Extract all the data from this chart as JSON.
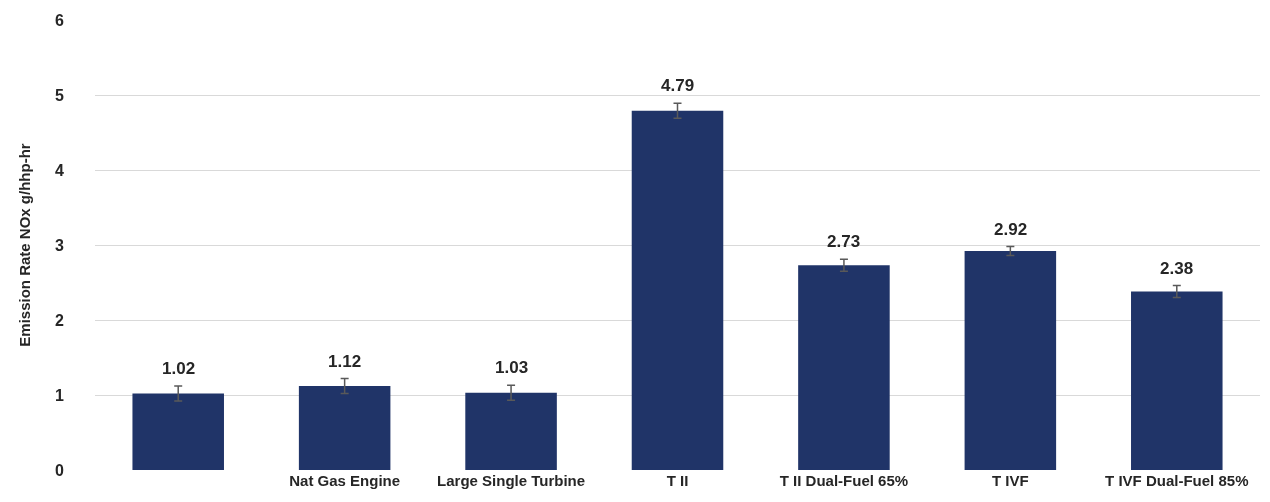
{
  "chart_data": {
    "type": "bar",
    "ylabel": "Emission Rate NOx g/hhp-hr",
    "categories": [
      null,
      "Nat Gas Engine",
      "Large Single Turbine",
      "T II",
      "T II Dual-Fuel 65%",
      "T IVF",
      "T IVF Dual-Fuel 85%"
    ],
    "values": [
      1.02,
      1.12,
      1.03,
      4.79,
      2.73,
      2.92,
      2.38
    ],
    "errors": [
      0.1,
      0.1,
      0.1,
      0.1,
      0.08,
      0.06,
      0.08
    ],
    "color": "#203468",
    "ylim": [
      0,
      6
    ],
    "yticks": [
      0,
      1,
      2,
      3,
      4,
      5,
      6
    ],
    "grid": "y",
    "data_labels": true
  }
}
